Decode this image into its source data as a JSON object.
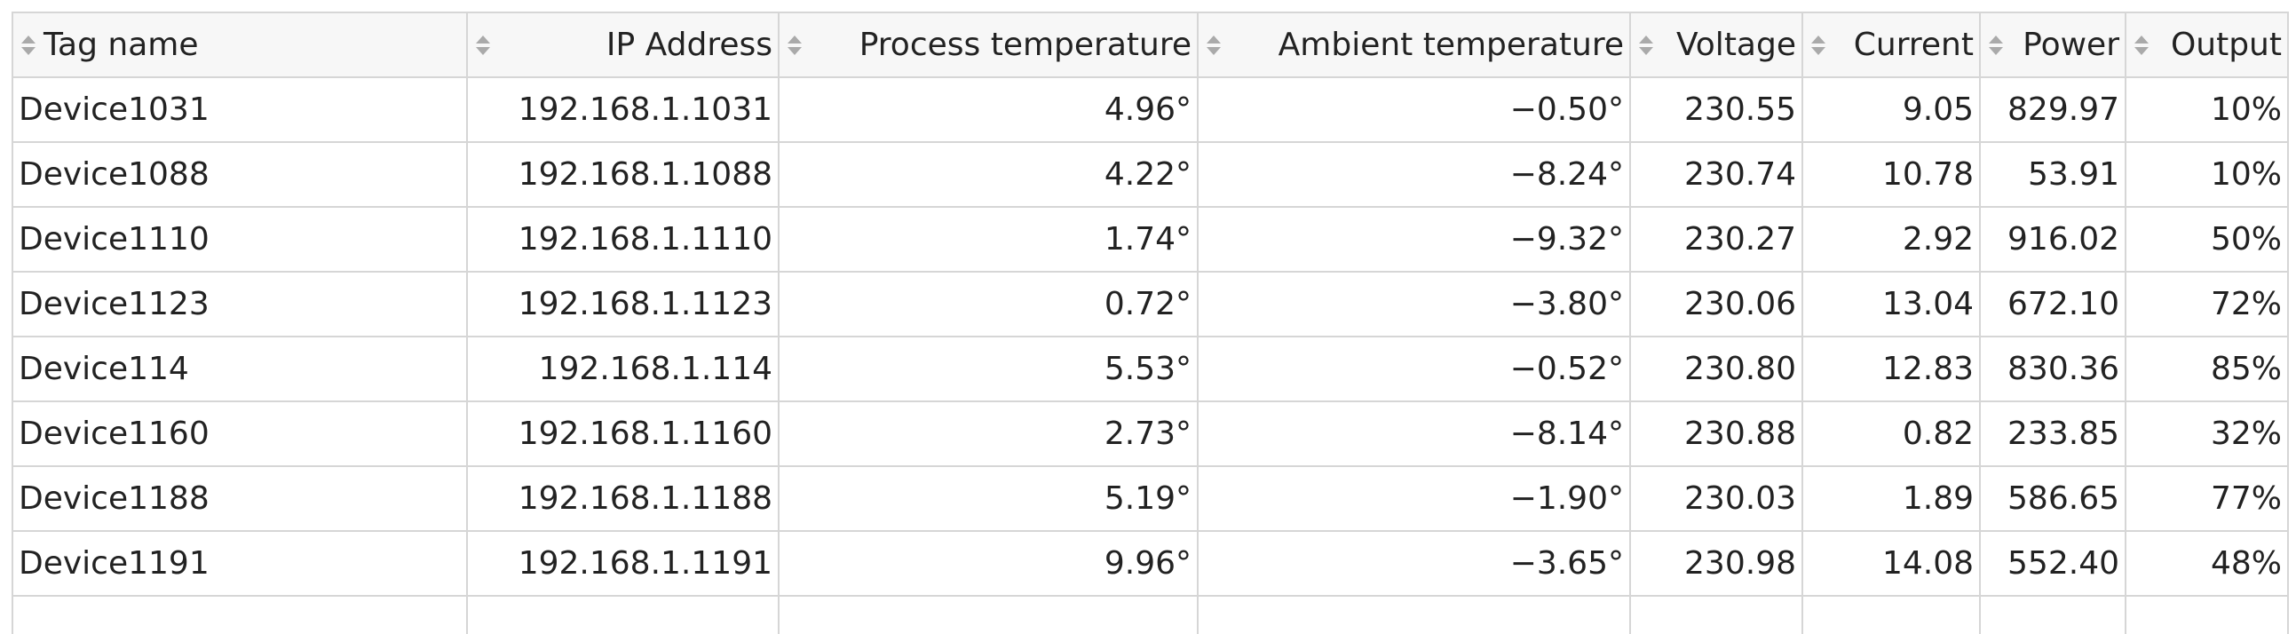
{
  "table": {
    "columns": [
      "Tag name",
      "IP Address",
      "Process temperature",
      "Ambient temperature",
      "Voltage",
      "Current",
      "Power",
      "Output"
    ],
    "rows": [
      [
        "Device1031",
        "192.168.1.1031",
        "4.96°",
        "−0.50°",
        "230.55",
        "9.05",
        "829.97",
        "10%"
      ],
      [
        "Device1088",
        "192.168.1.1088",
        "4.22°",
        "−8.24°",
        "230.74",
        "10.78",
        "53.91",
        "10%"
      ],
      [
        "Device1110",
        "192.168.1.1110",
        "1.74°",
        "−9.32°",
        "230.27",
        "2.92",
        "916.02",
        "50%"
      ],
      [
        "Device1123",
        "192.168.1.1123",
        "0.72°",
        "−3.80°",
        "230.06",
        "13.04",
        "672.10",
        "72%"
      ],
      [
        "Device114",
        "192.168.1.114",
        "5.53°",
        "−0.52°",
        "230.80",
        "12.83",
        "830.36",
        "85%"
      ],
      [
        "Device1160",
        "192.168.1.1160",
        "2.73°",
        "−8.14°",
        "230.88",
        "0.82",
        "233.85",
        "32%"
      ],
      [
        "Device1188",
        "192.168.1.1188",
        "5.19°",
        "−1.90°",
        "230.03",
        "1.89",
        "586.65",
        "77%"
      ],
      [
        "Device1191",
        "192.168.1.1191",
        "9.96°",
        "−3.65°",
        "230.98",
        "14.08",
        "552.40",
        "48%"
      ]
    ]
  }
}
